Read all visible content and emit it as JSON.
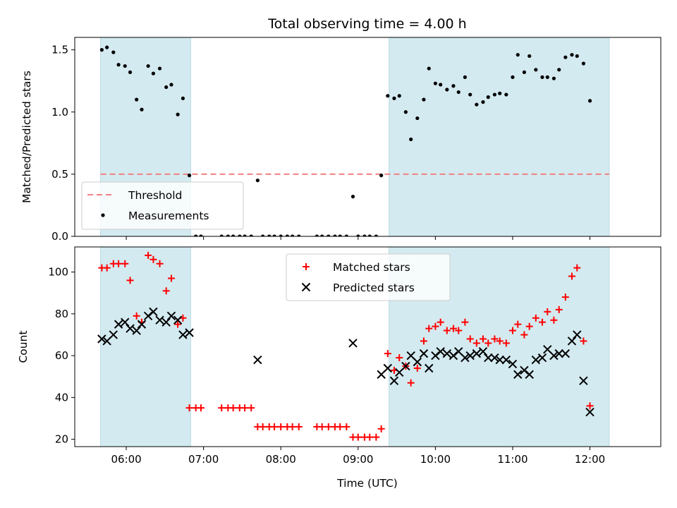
{
  "chart_data": {
    "title": "Total observing time = 4.00 h",
    "xlabel": "Time (UTC)",
    "x_ticks": [
      "06:00",
      "07:00",
      "08:00",
      "09:00",
      "10:00",
      "11:00",
      "12:00"
    ],
    "xlim": [
      "05:20",
      "12:55"
    ],
    "shaded_intervals": [
      [
        "05:40",
        "06:50"
      ],
      [
        "09:24",
        "12:15"
      ]
    ],
    "shade_color": "#d3eaf0",
    "panels": [
      {
        "type": "scatter",
        "ylabel": "Matched/Predicted stars",
        "ylim": [
          0,
          1.6
        ],
        "y_ticks": [
          0.0,
          0.5,
          1.0,
          1.5
        ],
        "y_tick_labels": [
          "0.0",
          "0.5",
          "1.0",
          "1.5"
        ],
        "legend_position": "lower-left",
        "hlines": [
          {
            "name": "Threshold",
            "y": 0.5,
            "color": "#f08080",
            "style": "dashed"
          }
        ],
        "series": [
          {
            "name": "Measurements",
            "marker": "dot",
            "color": "#000000",
            "points": [
              [
                "05:41",
                1.5
              ],
              [
                "05:45",
                1.52
              ],
              [
                "05:50",
                1.48
              ],
              [
                "05:54",
                1.38
              ],
              [
                "05:59",
                1.37
              ],
              [
                "06:03",
                1.32
              ],
              [
                "06:08",
                1.1
              ],
              [
                "06:12",
                1.02
              ],
              [
                "06:17",
                1.37
              ],
              [
                "06:21",
                1.31
              ],
              [
                "06:26",
                1.35
              ],
              [
                "06:31",
                1.2
              ],
              [
                "06:35",
                1.22
              ],
              [
                "06:40",
                0.98
              ],
              [
                "06:44",
                1.11
              ],
              [
                "06:49",
                0.49
              ],
              [
                "06:54",
                0.0
              ],
              [
                "06:58",
                0.0
              ],
              [
                "07:14",
                0.0
              ],
              [
                "07:19",
                0.0
              ],
              [
                "07:23",
                0.0
              ],
              [
                "07:28",
                0.0
              ],
              [
                "07:32",
                0.0
              ],
              [
                "07:37",
                0.0
              ],
              [
                "07:42",
                0.45
              ],
              [
                "07:46",
                0.0
              ],
              [
                "07:51",
                0.0
              ],
              [
                "07:55",
                0.0
              ],
              [
                "08:00",
                0.0
              ],
              [
                "08:05",
                0.0
              ],
              [
                "08:09",
                0.0
              ],
              [
                "08:14",
                0.0
              ],
              [
                "08:28",
                0.0
              ],
              [
                "08:32",
                0.0
              ],
              [
                "08:37",
                0.0
              ],
              [
                "08:42",
                0.0
              ],
              [
                "08:46",
                0.0
              ],
              [
                "08:51",
                0.0
              ],
              [
                "08:56",
                0.32
              ],
              [
                "09:00",
                0.0
              ],
              [
                "09:05",
                0.0
              ],
              [
                "09:09",
                0.0
              ],
              [
                "09:14",
                0.0
              ],
              [
                "09:18",
                0.49
              ],
              [
                "09:23",
                1.13
              ],
              [
                "09:28",
                1.11
              ],
              [
                "09:32",
                1.13
              ],
              [
                "09:37",
                1.0
              ],
              [
                "09:41",
                0.78
              ],
              [
                "09:46",
                0.95
              ],
              [
                "09:51",
                1.1
              ],
              [
                "09:55",
                1.35
              ],
              [
                "10:00",
                1.23
              ],
              [
                "10:04",
                1.22
              ],
              [
                "10:09",
                1.18
              ],
              [
                "10:14",
                1.21
              ],
              [
                "10:18",
                1.16
              ],
              [
                "10:23",
                1.28
              ],
              [
                "10:27",
                1.14
              ],
              [
                "10:32",
                1.06
              ],
              [
                "10:37",
                1.08
              ],
              [
                "10:41",
                1.12
              ],
              [
                "10:46",
                1.14
              ],
              [
                "10:50",
                1.15
              ],
              [
                "10:55",
                1.14
              ],
              [
                "11:00",
                1.28
              ],
              [
                "11:04",
                1.46
              ],
              [
                "11:09",
                1.32
              ],
              [
                "11:13",
                1.45
              ],
              [
                "11:18",
                1.34
              ],
              [
                "11:23",
                1.28
              ],
              [
                "11:27",
                1.28
              ],
              [
                "11:32",
                1.27
              ],
              [
                "11:36",
                1.34
              ],
              [
                "11:41",
                1.44
              ],
              [
                "11:46",
                1.46
              ],
              [
                "11:50",
                1.45
              ],
              [
                "11:55",
                1.39
              ],
              [
                "12:00",
                1.09
              ]
            ]
          }
        ]
      },
      {
        "type": "scatter",
        "ylabel": "Count",
        "ylim": [
          16.5,
          112
        ],
        "y_ticks": [
          20,
          40,
          60,
          80,
          100
        ],
        "y_tick_labels": [
          "20",
          "40",
          "60",
          "80",
          "100"
        ],
        "legend_position": "upper-center",
        "series": [
          {
            "name": "Matched stars",
            "marker": "plus",
            "color": "#ff0000",
            "points": [
              [
                "05:41",
                102
              ],
              [
                "05:45",
                102
              ],
              [
                "05:50",
                104
              ],
              [
                "05:54",
                104
              ],
              [
                "05:59",
                104
              ],
              [
                "06:03",
                96
              ],
              [
                "06:08",
                79
              ],
              [
                "06:12",
                76
              ],
              [
                "06:17",
                108
              ],
              [
                "06:21",
                106
              ],
              [
                "06:26",
                104
              ],
              [
                "06:31",
                91
              ],
              [
                "06:35",
                97
              ],
              [
                "06:40",
                75
              ],
              [
                "06:44",
                78
              ],
              [
                "06:49",
                35
              ],
              [
                "06:54",
                35
              ],
              [
                "06:58",
                35
              ],
              [
                "07:14",
                35
              ],
              [
                "07:19",
                35
              ],
              [
                "07:23",
                35
              ],
              [
                "07:28",
                35
              ],
              [
                "07:32",
                35
              ],
              [
                "07:37",
                35
              ],
              [
                "07:42",
                26
              ],
              [
                "07:46",
                26
              ],
              [
                "07:51",
                26
              ],
              [
                "07:55",
                26
              ],
              [
                "08:00",
                26
              ],
              [
                "08:05",
                26
              ],
              [
                "08:09",
                26
              ],
              [
                "08:14",
                26
              ],
              [
                "08:28",
                26
              ],
              [
                "08:32",
                26
              ],
              [
                "08:37",
                26
              ],
              [
                "08:42",
                26
              ],
              [
                "08:46",
                26
              ],
              [
                "08:51",
                26
              ],
              [
                "08:56",
                21
              ],
              [
                "09:00",
                21
              ],
              [
                "09:05",
                21
              ],
              [
                "09:09",
                21
              ],
              [
                "09:14",
                21
              ],
              [
                "09:18",
                25
              ],
              [
                "09:23",
                61
              ],
              [
                "09:28",
                53
              ],
              [
                "09:32",
                59
              ],
              [
                "09:37",
                55
              ],
              [
                "09:41",
                47
              ],
              [
                "09:46",
                54
              ],
              [
                "09:51",
                67
              ],
              [
                "09:55",
                73
              ],
              [
                "10:00",
                74
              ],
              [
                "10:04",
                76
              ],
              [
                "10:09",
                72
              ],
              [
                "10:14",
                73
              ],
              [
                "10:18",
                72
              ],
              [
                "10:23",
                76
              ],
              [
                "10:27",
                68
              ],
              [
                "10:32",
                66
              ],
              [
                "10:37",
                68
              ],
              [
                "10:41",
                66
              ],
              [
                "10:46",
                68
              ],
              [
                "10:50",
                67
              ],
              [
                "10:55",
                66
              ],
              [
                "11:00",
                72
              ],
              [
                "11:04",
                75
              ],
              [
                "11:09",
                70
              ],
              [
                "11:13",
                74
              ],
              [
                "11:18",
                78
              ],
              [
                "11:23",
                76
              ],
              [
                "11:27",
                81
              ],
              [
                "11:32",
                77
              ],
              [
                "11:36",
                82
              ],
              [
                "11:41",
                88
              ],
              [
                "11:46",
                98
              ],
              [
                "11:50",
                102
              ],
              [
                "11:55",
                67
              ],
              [
                "12:00",
                36
              ]
            ]
          },
          {
            "name": "Predicted stars",
            "marker": "x",
            "color": "#000000",
            "points": [
              [
                "05:41",
                68
              ],
              [
                "05:45",
                67
              ],
              [
                "05:50",
                70
              ],
              [
                "05:54",
                75
              ],
              [
                "05:59",
                76
              ],
              [
                "06:03",
                73
              ],
              [
                "06:08",
                72
              ],
              [
                "06:12",
                75
              ],
              [
                "06:17",
                79
              ],
              [
                "06:21",
                81
              ],
              [
                "06:26",
                77
              ],
              [
                "06:31",
                76
              ],
              [
                "06:35",
                79
              ],
              [
                "06:40",
                77
              ],
              [
                "06:44",
                70
              ],
              [
                "06:49",
                71
              ],
              [
                "07:42",
                58
              ],
              [
                "08:56",
                66
              ],
              [
                "09:18",
                51
              ],
              [
                "09:23",
                54
              ],
              [
                "09:28",
                48
              ],
              [
                "09:32",
                52
              ],
              [
                "09:37",
                55
              ],
              [
                "09:41",
                60
              ],
              [
                "09:46",
                57
              ],
              [
                "09:51",
                61
              ],
              [
                "09:55",
                54
              ],
              [
                "10:00",
                60
              ],
              [
                "10:04",
                62
              ],
              [
                "10:09",
                61
              ],
              [
                "10:14",
                60
              ],
              [
                "10:18",
                62
              ],
              [
                "10:23",
                59
              ],
              [
                "10:27",
                60
              ],
              [
                "10:32",
                61
              ],
              [
                "10:37",
                62
              ],
              [
                "10:41",
                59
              ],
              [
                "10:46",
                59
              ],
              [
                "10:50",
                58
              ],
              [
                "10:55",
                58
              ],
              [
                "11:00",
                56
              ],
              [
                "11:04",
                51
              ],
              [
                "11:09",
                53
              ],
              [
                "11:13",
                51
              ],
              [
                "11:18",
                58
              ],
              [
                "11:23",
                59
              ],
              [
                "11:27",
                63
              ],
              [
                "11:32",
                60
              ],
              [
                "11:36",
                61
              ],
              [
                "11:41",
                61
              ],
              [
                "11:46",
                67
              ],
              [
                "11:50",
                70
              ],
              [
                "11:55",
                48
              ],
              [
                "12:00",
                33
              ]
            ]
          }
        ]
      }
    ]
  }
}
